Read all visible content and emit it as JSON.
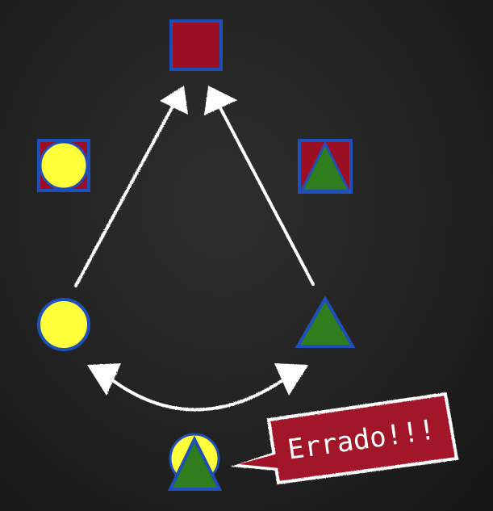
{
  "colors": {
    "background": "#222222",
    "square_fill": "#9b0f24",
    "circle_fill": "#ffff3a",
    "triangle_fill": "#2f7d1d",
    "outline_blue": "#1f4fb8",
    "chalk": "#ffffff"
  },
  "shapes": {
    "top": "square",
    "left_combo": "circle-inside-square",
    "right_combo": "triangle-inside-square",
    "left": "circle",
    "right": "triangle",
    "bottom_combo": "triangle-over-circle"
  },
  "arrows": [
    {
      "from": "circle",
      "to": "square"
    },
    {
      "from": "triangle",
      "to": "square"
    },
    {
      "from": "circle",
      "to": "triangle",
      "bidirectional": true
    }
  ],
  "callout": {
    "text": "Errado!!!",
    "fill": "#a2132a",
    "border": "#ffffff"
  }
}
